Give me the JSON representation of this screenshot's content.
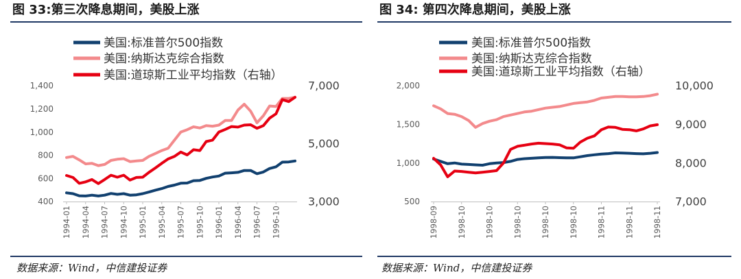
{
  "colors": {
    "rule": "#1f3864",
    "axis_text": "#595959",
    "axis_line": "#bfbfbf"
  },
  "chart_data": [
    {
      "type": "line",
      "title": "图 33:第三次降息期间，美股上涨",
      "source": "数据来源：Wind，中信建投证券",
      "legend": "top-left",
      "grid": false,
      "x_ticks": {
        "every": 3,
        "labels": [
          "1994-01",
          "1994-04",
          "1994-07",
          "1994-10",
          "1995-01",
          "1995-04",
          "1995-07",
          "1995-10",
          "1996-01",
          "1996-04",
          "1996-07",
          "1996-10"
        ]
      },
      "y_left": {
        "min": 400,
        "max": 1400,
        "ticks": [
          "400",
          "600",
          "800",
          "1,000",
          "1,200",
          "1,400"
        ]
      },
      "y_right": {
        "min": 3000,
        "max": 7000,
        "ticks": [
          "3,000",
          "5,000",
          "7,000"
        ]
      },
      "series": [
        {
          "name": "美国:标准普尔500指数",
          "axis": "left",
          "color": "#11406f",
          "values": [
            475,
            468,
            450,
            448,
            455,
            448,
            455,
            470,
            462,
            468,
            455,
            458,
            468,
            482,
            498,
            512,
            530,
            542,
            558,
            560,
            580,
            582,
            600,
            612,
            620,
            645,
            648,
            652,
            668,
            668,
            640,
            655,
            685,
            700,
            740,
            742,
            750
          ]
        },
        {
          "name": "美国:纳斯达克综合指数",
          "axis": "left",
          "color": "#f38a8c",
          "values": [
            780,
            790,
            760,
            725,
            730,
            710,
            720,
            755,
            765,
            770,
            745,
            750,
            755,
            790,
            815,
            840,
            860,
            930,
            1000,
            1020,
            1045,
            1035,
            1055,
            1050,
            1060,
            1100,
            1100,
            1190,
            1240,
            1180,
            1080,
            1140,
            1225,
            1220,
            1290,
            1290,
            1300
          ]
        },
        {
          "name": "美国:道琼斯工业平均指数（右轴）",
          "axis": "right",
          "color": "#e60012",
          "values": [
            3900,
            3830,
            3630,
            3680,
            3760,
            3620,
            3760,
            3910,
            3840,
            3910,
            3740,
            3830,
            3840,
            4010,
            4160,
            4320,
            4470,
            4560,
            4710,
            4610,
            4790,
            4760,
            5070,
            5120,
            5400,
            5490,
            5590,
            5570,
            5640,
            5650,
            5530,
            5620,
            5880,
            6030,
            6520,
            6450,
            6600
          ]
        }
      ]
    },
    {
      "type": "line",
      "title": "图 34: 第四次降息期间，美股上涨",
      "source": "数据来源：Wind，中信建投证券",
      "legend": "top-left",
      "grid": false,
      "x_ticks": {
        "every": 4,
        "labels": [
          "1998-09",
          "1998-10",
          "1998-10",
          "1998-10",
          "1998-10",
          "1998-10",
          "1998-11",
          "1998-11",
          "1998-11"
        ]
      },
      "y_left": {
        "min": 500,
        "max": 2000,
        "ticks": [
          "500",
          "1,000",
          "1,500",
          "2,000"
        ]
      },
      "y_right": {
        "min": 7000,
        "max": 10000,
        "ticks": [
          "7,000",
          "8,000",
          "9,000",
          "10,000"
        ]
      },
      "series": [
        {
          "name": "美国:标准普尔500指数",
          "axis": "left",
          "color": "#11406f",
          "values": [
            1050,
            1020,
            990,
            1000,
            985,
            980,
            975,
            970,
            990,
            1000,
            1005,
            1020,
            1045,
            1055,
            1060,
            1065,
            1070,
            1072,
            1068,
            1066,
            1065,
            1080,
            1095,
            1105,
            1115,
            1120,
            1130,
            1128,
            1125,
            1120,
            1118,
            1125,
            1135
          ]
        },
        {
          "name": "美国:纳斯达克综合指数",
          "axis": "left",
          "color": "#f38a8c",
          "values": [
            1740,
            1700,
            1640,
            1630,
            1600,
            1550,
            1460,
            1510,
            1540,
            1560,
            1600,
            1620,
            1640,
            1660,
            1670,
            1690,
            1710,
            1720,
            1730,
            1750,
            1770,
            1780,
            1790,
            1810,
            1840,
            1850,
            1860,
            1860,
            1855,
            1855,
            1860,
            1870,
            1890
          ]
        },
        {
          "name": "美国:道琼斯工业平均指数（右轴）",
          "axis": "right",
          "color": "#e60012",
          "values": [
            8120,
            7950,
            7640,
            7790,
            7780,
            7760,
            7740,
            7760,
            7780,
            7800,
            8000,
            8350,
            8430,
            8460,
            8490,
            8510,
            8500,
            8490,
            8470,
            8390,
            8380,
            8540,
            8640,
            8700,
            8860,
            8930,
            8920,
            8870,
            8860,
            8830,
            8880,
            8960,
            8990
          ]
        }
      ]
    }
  ]
}
